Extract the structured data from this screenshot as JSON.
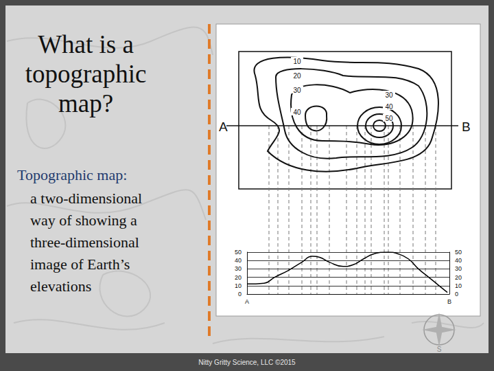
{
  "slide": {
    "title_lines": [
      "What is a",
      "topographic",
      "map?"
    ],
    "term": "Topographic map:",
    "definition_lines": [
      "a two-dimensional",
      "way of showing a",
      "three-dimensional",
      "image of Earth’s",
      "elevations"
    ],
    "footer": "Nitty Gritty Science, LLC ©2015",
    "compass": "S"
  },
  "map": {
    "left_peak_contours": [
      10,
      20,
      30,
      40
    ],
    "right_peak_contours": [
      30,
      40,
      50
    ],
    "section_labels": [
      "A",
      "B"
    ]
  },
  "chart_data": {
    "type": "line",
    "color": "#000000",
    "line_style": "solid",
    "marker": "none",
    "grid": true,
    "tick_labels": true,
    "x": [
      0,
      8.5,
      13.6,
      20.3,
      27.1,
      32.2,
      35.6,
      40.7,
      47.5,
      52.5,
      57.6,
      62.7,
      69.5,
      74.6,
      79.7,
      84.7,
      89.8,
      94.9,
      99
    ],
    "values": [
      12,
      13,
      20,
      28,
      38,
      45,
      44,
      38,
      33,
      35,
      42,
      48,
      50,
      48,
      42,
      30,
      20,
      10,
      2
    ],
    "xlim": [
      0,
      100
    ],
    "xticks": [
      {
        "value": 0,
        "label": "A"
      },
      {
        "value": 100,
        "label": "B"
      }
    ],
    "ylim": [
      0,
      50
    ],
    "yticks": [
      0,
      10,
      20,
      30,
      40,
      50
    ],
    "y2lim": [
      0,
      50
    ],
    "y2ticks": [
      0,
      10,
      20,
      30,
      40,
      50
    ]
  }
}
